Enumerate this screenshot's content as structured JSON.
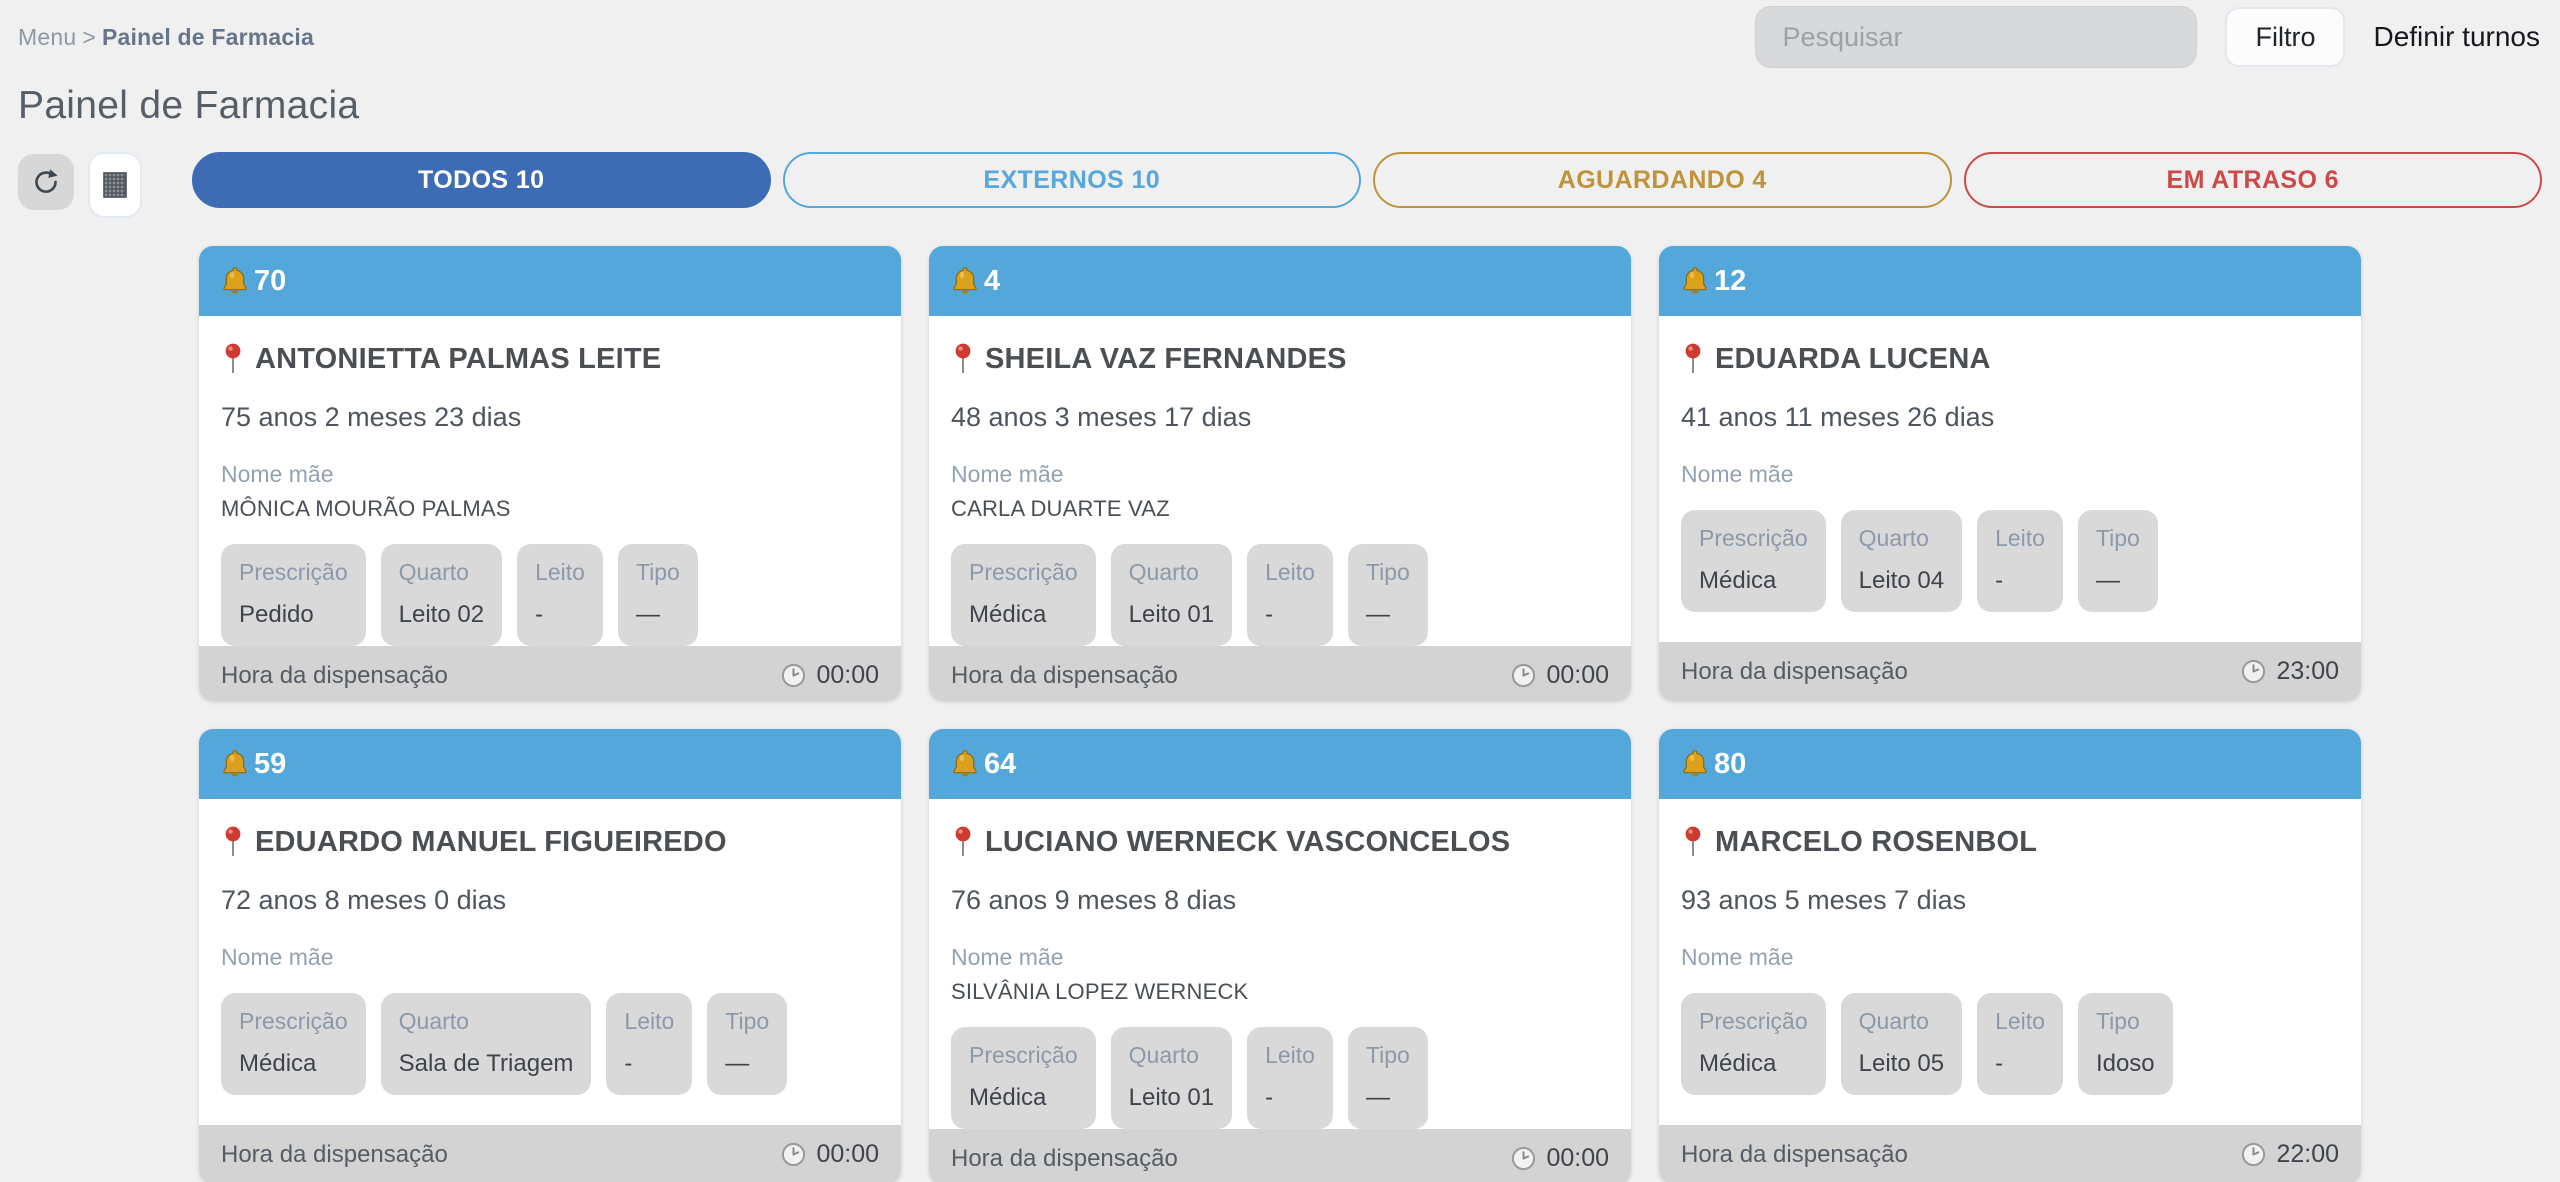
{
  "topbar": {
    "breadcrumb": {
      "root": "Menu",
      "separator": ">",
      "current": "Painel de Farmacia"
    },
    "search": {
      "placeholder": "Pesquisar"
    },
    "filter_button_label": "Filtro",
    "define_shifts_label": "Definir turnos"
  },
  "page_title": "Painel de Farmacia",
  "toolbar_icons": {
    "refresh": "refresh-icon",
    "grid": "grid-view-icon"
  },
  "tabs": [
    {
      "label": "TODOS 10",
      "color": "#3d6cb4",
      "active": true
    },
    {
      "label": "EXTERNOS 10",
      "color": "#57a7dc",
      "active": false
    },
    {
      "label": "AGUARDANDO 4",
      "color": "#bf9339",
      "active": false
    },
    {
      "label": "EM ATRASO 6",
      "color": "#cb4a49",
      "active": false
    }
  ],
  "labels": {
    "mother": "Nome mãe",
    "dispense": "Hora da dispensação"
  },
  "cards": [
    {
      "bell_count": "70",
      "name": "ANTONIETTA PALMAS LEITE",
      "age": "75 anos 2 meses 23 dias",
      "mother": "MÔNICA MOURÃO PALMAS",
      "chips": [
        {
          "label": "Prescrição",
          "value": "Pedido"
        },
        {
          "label": "Quarto",
          "value": "Leito 02"
        },
        {
          "label": "Leito",
          "value": "-"
        },
        {
          "label": "Tipo",
          "value": "—"
        }
      ],
      "dispense_time": "00:00"
    },
    {
      "bell_count": "4",
      "name": "SHEILA VAZ FERNANDES",
      "age": "48 anos 3 meses 17 dias",
      "mother": "CARLA DUARTE VAZ",
      "chips": [
        {
          "label": "Prescrição",
          "value": "Médica"
        },
        {
          "label": "Quarto",
          "value": "Leito 01"
        },
        {
          "label": "Leito",
          "value": "-"
        },
        {
          "label": "Tipo",
          "value": "—"
        }
      ],
      "dispense_time": "00:00"
    },
    {
      "bell_count": "12",
      "name": "EDUARDA LUCENA",
      "age": "41 anos 11 meses 26 dias",
      "mother": "",
      "chips": [
        {
          "label": "Prescrição",
          "value": "Médica"
        },
        {
          "label": "Quarto",
          "value": "Leito 04"
        },
        {
          "label": "Leito",
          "value": "-"
        },
        {
          "label": "Tipo",
          "value": "—"
        }
      ],
      "dispense_time": "23:00"
    },
    {
      "bell_count": "59",
      "name": "EDUARDO MANUEL FIGUEIREDO",
      "age": "72 anos 8 meses 0 dias",
      "mother": "",
      "chips": [
        {
          "label": "Prescrição",
          "value": "Médica"
        },
        {
          "label": "Quarto",
          "value": "Sala de Triagem"
        },
        {
          "label": "Leito",
          "value": "-"
        },
        {
          "label": "Tipo",
          "value": "—"
        }
      ],
      "dispense_time": "00:00"
    },
    {
      "bell_count": "64",
      "name": "LUCIANO WERNECK VASCONCELOS",
      "age": "76 anos 9 meses 8 dias",
      "mother": "SILVÂNIA LOPEZ WERNECK",
      "chips": [
        {
          "label": "Prescrição",
          "value": "Médica"
        },
        {
          "label": "Quarto",
          "value": "Leito 01"
        },
        {
          "label": "Leito",
          "value": "-"
        },
        {
          "label": "Tipo",
          "value": "—"
        }
      ],
      "dispense_time": "00:00"
    },
    {
      "bell_count": "80",
      "name": "MARCELO ROSENBOL",
      "age": "93 anos 5 meses 7 dias",
      "mother": "",
      "chips": [
        {
          "label": "Prescrição",
          "value": "Médica"
        },
        {
          "label": "Quarto",
          "value": "Leito 05"
        },
        {
          "label": "Leito",
          "value": "-"
        },
        {
          "label": "Tipo",
          "value": "Idoso"
        }
      ],
      "dispense_time": "22:00"
    }
  ],
  "colors": {
    "page_bg": "#f0f0f1",
    "card_header_blue": "#54a7db",
    "active_tab_blue": "#3d6cb4",
    "chip_bg": "#d9d9d9",
    "footer_bg": "#d3d3d3"
  }
}
